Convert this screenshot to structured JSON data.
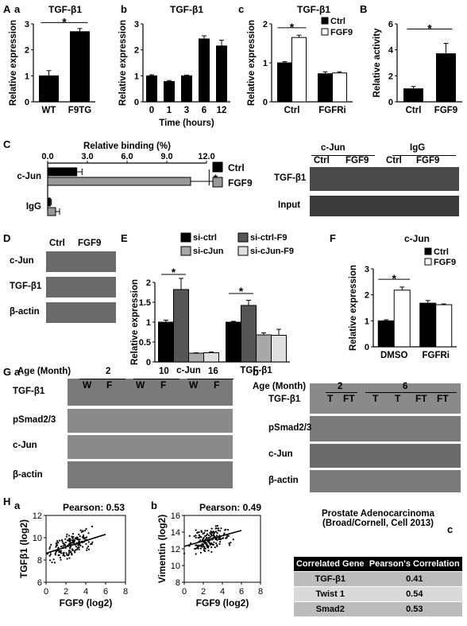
{
  "panel_letters": {
    "A": "A",
    "Aa": "a",
    "Ab": "b",
    "Ac": "c",
    "B": "B",
    "C": "C",
    "D": "D",
    "E": "E",
    "F": "F",
    "G": "G",
    "Ga": "a",
    "Gb": "b",
    "H": "H",
    "Ha": "a",
    "Hb": "b",
    "Hc": "c"
  },
  "common": {
    "rel_expr": "Relative expression",
    "rel_activity": "Relative activity",
    "time_hours": "Time (hours)",
    "star": "*"
  },
  "chart_data": [
    {
      "id": "Aa",
      "type": "bar",
      "title": "TGF-β1",
      "ylabel": "Relative expression",
      "categories": [
        "WT",
        "F9TG"
      ],
      "values": [
        1.0,
        2.7
      ],
      "errors": [
        0.2,
        0.12
      ],
      "ylim": [
        0,
        3
      ],
      "yticks": [
        "0",
        "1",
        "2",
        "3"
      ],
      "significance": "*"
    },
    {
      "id": "Ab",
      "type": "bar",
      "title": "TGF-β1",
      "ylabel": "Relative expression",
      "xlabel": "Time (hours)",
      "categories": [
        "0",
        "1",
        "3",
        "6",
        "12"
      ],
      "values": [
        1.0,
        0.78,
        1.0,
        2.42,
        2.15
      ],
      "errors": [
        0.04,
        0.04,
        0.03,
        0.12,
        0.22
      ],
      "ylim": [
        0,
        3
      ],
      "yticks": [
        "0",
        "1",
        "2",
        "3"
      ]
    },
    {
      "id": "Ac",
      "type": "bar",
      "title": "TGF-β1",
      "ylabel": "Relative expression",
      "categories": [
        "Ctrl",
        "FGFRi"
      ],
      "series": [
        {
          "name": "Ctrl",
          "values": [
            1.0,
            0.72
          ],
          "errors": [
            0.03,
            0.05
          ]
        },
        {
          "name": "FGF9",
          "values": [
            1.65,
            0.74
          ],
          "errors": [
            0.06,
            0.03
          ]
        }
      ],
      "ylim": [
        0,
        2
      ],
      "yticks": [
        "0",
        "1",
        "2"
      ],
      "legend": "top-right",
      "significance": "*"
    },
    {
      "id": "B",
      "type": "bar",
      "ylabel": "Relative activity",
      "categories": [
        "Ctrl",
        "FGF9"
      ],
      "values": [
        1.0,
        3.7
      ],
      "errors": [
        0.18,
        0.8
      ],
      "ylim": [
        0,
        6
      ],
      "yticks": [
        "0",
        "2",
        "4",
        "6"
      ],
      "significance": "*"
    },
    {
      "id": "C",
      "type": "bar",
      "orientation": "horizontal",
      "xlabel": "Relative binding (%)",
      "categories": [
        "c-Jun",
        "IgG"
      ],
      "series": [
        {
          "name": "Ctrl",
          "values": [
            2.2,
            0.2
          ],
          "errors": [
            0.4,
            0.08
          ]
        },
        {
          "name": "FGF9",
          "values": [
            10.8,
            0.6
          ],
          "errors": [
            2.4,
            0.3
          ]
        }
      ],
      "xlim": [
        0,
        12
      ],
      "xticks": [
        "0.0",
        "3.0",
        "6.0",
        "9.0",
        "12.0"
      ],
      "legend": "right",
      "significance": "*"
    },
    {
      "id": "E",
      "type": "bar",
      "ylabel": "Relative expression",
      "categories": [
        "c-Jun",
        "TGF-β1"
      ],
      "series": [
        {
          "name": "si-ctrl",
          "values": [
            1.0,
            1.0
          ],
          "errors": [
            0.05,
            0.02
          ]
        },
        {
          "name": "si-ctrl-F9",
          "values": [
            1.82,
            1.42
          ],
          "errors": [
            0.28,
            0.13
          ]
        },
        {
          "name": "si-cJun",
          "values": [
            0.22,
            0.68
          ],
          "errors": [
            0.01,
            0.05
          ]
        },
        {
          "name": "si-cJun-F9",
          "values": [
            0.23,
            0.67
          ],
          "errors": [
            0.02,
            0.15
          ]
        }
      ],
      "ylim": [
        0,
        2
      ],
      "yticks": [
        "0",
        "0.5",
        "1",
        "1.5",
        "2"
      ],
      "legend": "top",
      "significance": "*"
    },
    {
      "id": "F",
      "type": "bar",
      "title": "c-Jun",
      "ylabel": "Relative expression",
      "categories": [
        "DMSO",
        "FGFRi"
      ],
      "series": [
        {
          "name": "Ctrl",
          "values": [
            1.0,
            1.68
          ],
          "errors": [
            0.04,
            0.1
          ]
        },
        {
          "name": "FGF9",
          "values": [
            2.18,
            1.62
          ],
          "errors": [
            0.12,
            0.03
          ]
        }
      ],
      "ylim": [
        0,
        3
      ],
      "yticks": [
        "0",
        "1",
        "2",
        "3"
      ],
      "legend": "top-right",
      "significance": "*"
    },
    {
      "id": "Ha",
      "type": "scatter",
      "title": "Pearson: 0.53",
      "xlabel": "FGF9 (log2)",
      "ylabel": "TGFβ1 (log2)",
      "xlim": [
        0,
        8
      ],
      "ylim": [
        6,
        12
      ],
      "xticks": [
        "0",
        "2",
        "4",
        "6",
        "8"
      ],
      "yticks": [
        "6",
        "8",
        "10",
        "12"
      ],
      "fit": [
        [
          0,
          8.6
        ],
        [
          6,
          10.3
        ]
      ]
    },
    {
      "id": "Hb",
      "type": "scatter",
      "title": "Pearson: 0.49",
      "xlabel": "FGF9 (log2)",
      "ylabel": "Vimentin (log2)",
      "xlim": [
        0,
        8
      ],
      "ylim": [
        8,
        16
      ],
      "xticks": [
        "0",
        "2",
        "4",
        "6",
        "8"
      ],
      "yticks": [
        "8",
        "10",
        "12",
        "14",
        "16"
      ],
      "fit": [
        [
          0,
          12.3
        ],
        [
          6,
          14.2
        ]
      ]
    }
  ],
  "panel_C_gel": {
    "header": "c-Jun",
    "header2": "IgG",
    "lanes": [
      "Ctrl",
      "FGF9",
      "Ctrl",
      "FGF9"
    ],
    "rows": [
      "TGF-β1",
      "Input"
    ]
  },
  "panel_D": {
    "lanes": [
      "Ctrl",
      "FGF9"
    ],
    "rows": [
      "c-Jun",
      "TGF-β1",
      "β-actin"
    ]
  },
  "panel_Ga": {
    "age_label": "Age (Month)",
    "ages": [
      "2",
      "10",
      "16"
    ],
    "lanes": [
      "W",
      "F",
      "W",
      "F",
      "W",
      "F"
    ],
    "rows": [
      "TGF-β1",
      "pSmad2/3",
      "c-Jun",
      "β-actin"
    ]
  },
  "panel_Gb": {
    "age_label": "Age (Month)",
    "ages": [
      "2",
      "6"
    ],
    "lanes": [
      "T",
      "FT",
      "T",
      "T",
      "FT",
      "FT"
    ],
    "rows": [
      "TGF-β1",
      "pSmad2/3",
      "c-Jun",
      "β-actin"
    ]
  },
  "panel_Hc": {
    "title1": "Prostate Adenocarcinoma",
    "title2": "(Broad/Cornell, Cell 2013)",
    "col1": "Correlated Gene",
    "col2": "Pearson's Correlation",
    "rows": [
      {
        "gene": "TGF-β1",
        "r": "0.41"
      },
      {
        "gene": "Twist 1",
        "r": "0.54"
      },
      {
        "gene": "Smad2",
        "r": "0.53"
      }
    ]
  }
}
